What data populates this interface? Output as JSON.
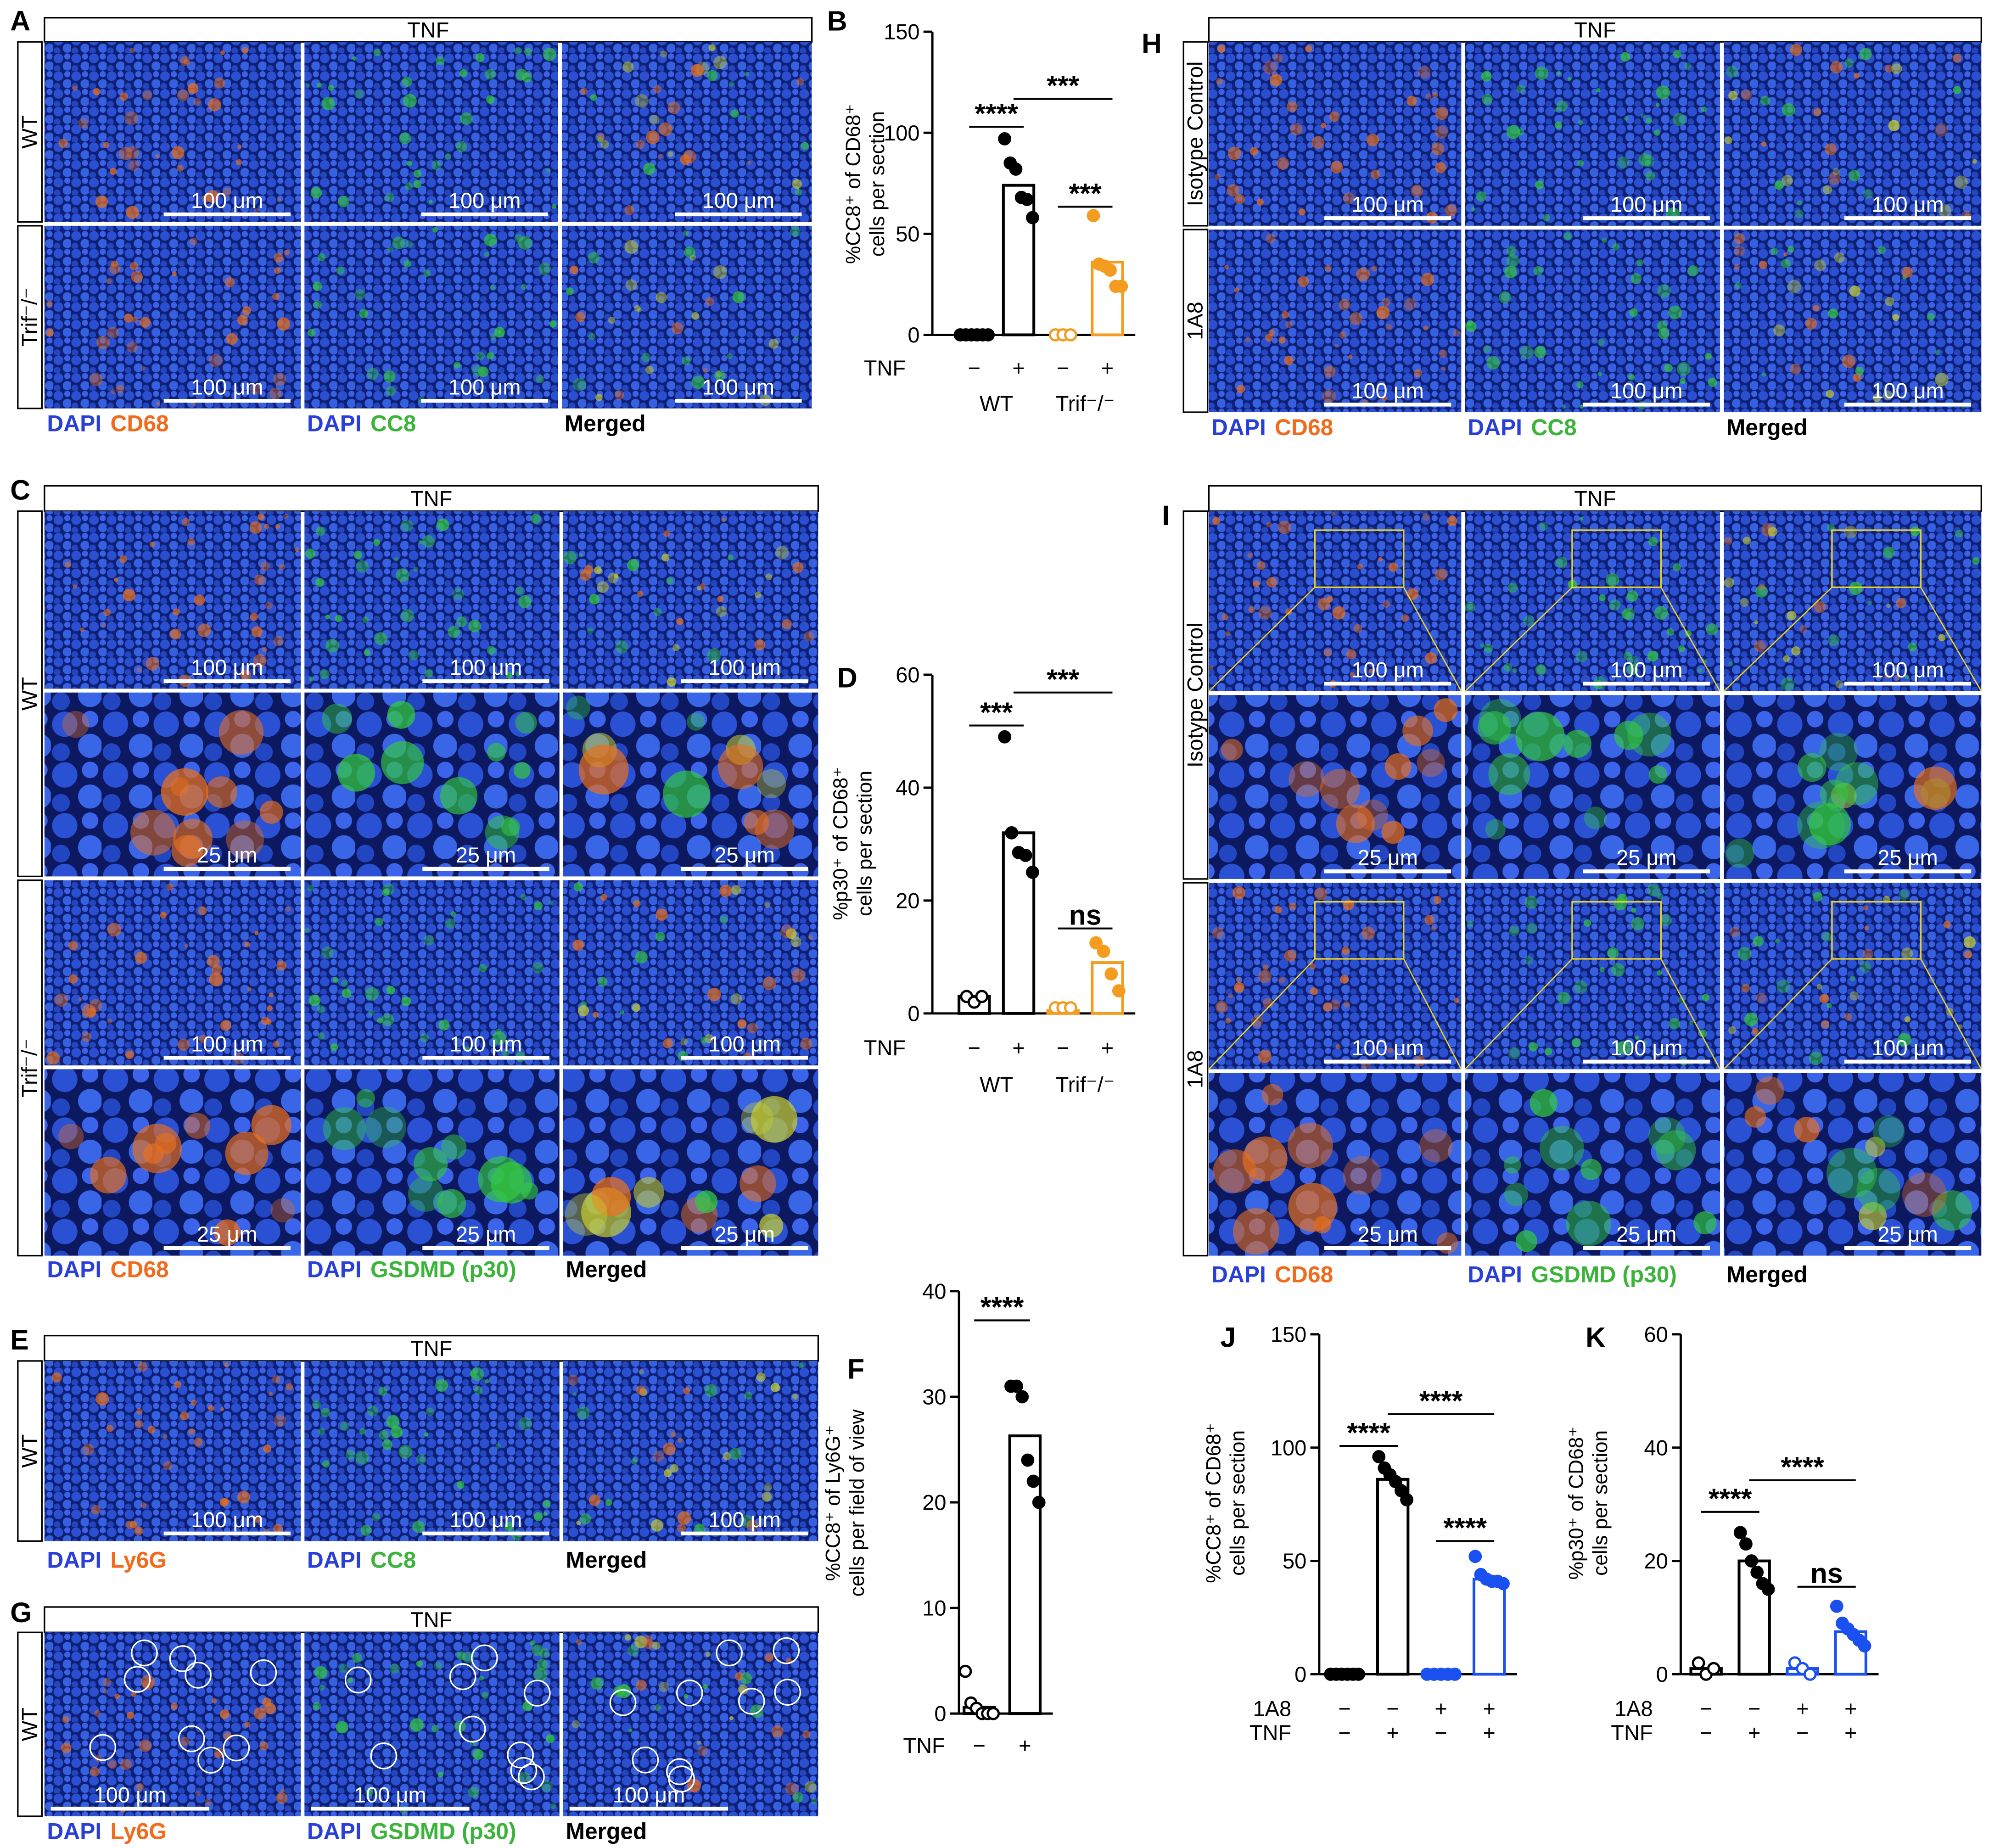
{
  "panels": [
    {
      "letter": "A",
      "header": "TNF",
      "groups": [
        {
          "label": "WT",
          "scales": [
            "100 μm"
          ]
        },
        {
          "label": "Trif⁻/⁻",
          "scales": [
            "100 μm"
          ]
        }
      ],
      "channels": [
        [
          {
            "text": "DAPI",
            "color": "#2a3fd9"
          },
          {
            "text": "CD68",
            "color": "#f26b1d"
          }
        ],
        [
          {
            "text": "DAPI",
            "color": "#2a3fd9"
          },
          {
            "text": "CC8",
            "color": "#3cb43c"
          }
        ],
        [
          {
            "text": "Merged",
            "color": "#000000"
          }
        ]
      ]
    },
    {
      "letter": "H",
      "header": "TNF",
      "groups": [
        {
          "label": "Isotype Control",
          "scales": [
            "100 μm"
          ]
        },
        {
          "label": "1A8",
          "scales": [
            "100 μm"
          ]
        }
      ],
      "channels": [
        [
          {
            "text": "DAPI",
            "color": "#2a3fd9"
          },
          {
            "text": "CD68",
            "color": "#f26b1d"
          }
        ],
        [
          {
            "text": "DAPI",
            "color": "#2a3fd9"
          },
          {
            "text": "CC8",
            "color": "#3cb43c"
          }
        ],
        [
          {
            "text": "Merged",
            "color": "#000000"
          }
        ]
      ]
    },
    {
      "letter": "C",
      "header": "TNF",
      "groups": [
        {
          "label": "WT",
          "scales": [
            "100 μm",
            "25 μm"
          ]
        },
        {
          "label": "Trif⁻/⁻",
          "scales": [
            "100 μm",
            "25 μm"
          ]
        }
      ],
      "channels": [
        [
          {
            "text": "DAPI",
            "color": "#2a3fd9"
          },
          {
            "text": "CD68",
            "color": "#f26b1d"
          }
        ],
        [
          {
            "text": "DAPI",
            "color": "#2a3fd9"
          },
          {
            "text": "GSDMD (p30)",
            "color": "#3cb43c"
          }
        ],
        [
          {
            "text": "Merged",
            "color": "#000000"
          }
        ]
      ]
    },
    {
      "letter": "I",
      "header": "TNF",
      "groups": [
        {
          "label": "Isotype Control",
          "scales": [
            "100 μm",
            "25 μm"
          ]
        },
        {
          "label": "1A8",
          "scales": [
            "100 μm",
            "25 μm"
          ]
        }
      ],
      "channels": [
        [
          {
            "text": "DAPI",
            "color": "#2a3fd9"
          },
          {
            "text": "CD68",
            "color": "#f26b1d"
          }
        ],
        [
          {
            "text": "DAPI",
            "color": "#2a3fd9"
          },
          {
            "text": "GSDMD (p30)",
            "color": "#3cb43c"
          }
        ],
        [
          {
            "text": "Merged",
            "color": "#000000"
          }
        ]
      ]
    },
    {
      "letter": "E",
      "header": "TNF",
      "groups": [
        {
          "label": "WT",
          "scales": [
            "100 μm"
          ]
        }
      ],
      "channels": [
        [
          {
            "text": "DAPI",
            "color": "#2a3fd9"
          },
          {
            "text": "Ly6G",
            "color": "#f26b1d"
          }
        ],
        [
          {
            "text": "DAPI",
            "color": "#2a3fd9"
          },
          {
            "text": "CC8",
            "color": "#3cb43c"
          }
        ],
        [
          {
            "text": "Merged",
            "color": "#000000"
          }
        ]
      ]
    },
    {
      "letter": "G",
      "header": "TNF",
      "groups": [
        {
          "label": "WT",
          "scales": [
            "100 μm"
          ]
        }
      ],
      "channels": [
        [
          {
            "text": "DAPI",
            "color": "#2a3fd9"
          },
          {
            "text": "Ly6G",
            "color": "#f26b1d"
          }
        ],
        [
          {
            "text": "DAPI",
            "color": "#2a3fd9"
          },
          {
            "text": "GSDMD (p30)",
            "color": "#3cb43c"
          }
        ],
        [
          {
            "text": "Merged",
            "color": "#000000"
          }
        ]
      ]
    }
  ],
  "chart_data": [
    {
      "type": "bar",
      "panel": "B",
      "ylabel": [
        "%CC8⁺ of CD68⁺",
        "cells per section"
      ],
      "ylim": [
        0,
        150
      ],
      "yticks": [
        0,
        50,
        100,
        150
      ],
      "bars": [
        {
          "value": 0,
          "color": "#000000",
          "filled": true,
          "points": [
            0,
            0,
            0,
            0,
            0,
            0
          ]
        },
        {
          "value": 74,
          "color": "#000000",
          "filled": true,
          "points": [
            97,
            85,
            82,
            68,
            67,
            58
          ]
        },
        {
          "value": 0,
          "color": "#f39c1f",
          "filled": false,
          "points": [
            0,
            0,
            0
          ]
        },
        {
          "value": 36,
          "color": "#f39c1f",
          "filled": true,
          "points": [
            59,
            35,
            34,
            32,
            24,
            24
          ]
        }
      ],
      "x_rows": [
        {
          "label": "TNF",
          "values": [
            "−",
            "+",
            "−",
            "+"
          ]
        }
      ],
      "groups": [
        "WT",
        "Trif⁻/⁻"
      ],
      "significance": [
        {
          "between": [
            0,
            1
          ],
          "label": "****"
        },
        {
          "between": [
            1,
            3
          ],
          "label": "***"
        },
        {
          "between": [
            2,
            3
          ],
          "label": "***"
        }
      ]
    },
    {
      "type": "bar",
      "panel": "D",
      "ylabel": [
        "%p30⁺ of CD68⁺",
        "cells per section"
      ],
      "ylim": [
        0,
        60
      ],
      "yticks": [
        0,
        20,
        40,
        60
      ],
      "bars": [
        {
          "value": 3,
          "color": "#000000",
          "filled": false,
          "points": [
            3,
            2,
            3
          ]
        },
        {
          "value": 32,
          "color": "#000000",
          "filled": true,
          "points": [
            49,
            32,
            28.5,
            28,
            25
          ]
        },
        {
          "value": 0.5,
          "color": "#f39c1f",
          "filled": false,
          "points": [
            1,
            1,
            1
          ]
        },
        {
          "value": 9,
          "color": "#f39c1f",
          "filled": true,
          "points": [
            12.5,
            11,
            7,
            4
          ]
        }
      ],
      "x_rows": [
        {
          "label": "TNF",
          "values": [
            "−",
            "+",
            "−",
            "+"
          ]
        }
      ],
      "groups": [
        "WT",
        "Trif⁻/⁻"
      ],
      "significance": [
        {
          "between": [
            0,
            1
          ],
          "label": "***"
        },
        {
          "between": [
            1,
            3
          ],
          "label": "***"
        },
        {
          "between": [
            2,
            3
          ],
          "label": "ns"
        }
      ]
    },
    {
      "type": "bar",
      "panel": "F",
      "ylabel": [
        "%CC8⁺ of Ly6G⁺",
        "cells per field of view"
      ],
      "ylim": [
        0,
        40
      ],
      "yticks": [
        0,
        10,
        20,
        30,
        40
      ],
      "bars": [
        {
          "value": 0.6,
          "color": "#000000",
          "filled": false,
          "points": [
            4,
            1,
            0.5,
            0,
            0,
            0
          ]
        },
        {
          "value": 26.3,
          "color": "#000000",
          "filled": true,
          "points": [
            31,
            31,
            30,
            24,
            22,
            20
          ]
        }
      ],
      "x_rows": [
        {
          "label": "TNF",
          "values": [
            "−",
            "+"
          ]
        }
      ],
      "significance": [
        {
          "between": [
            0,
            1
          ],
          "label": "****"
        }
      ]
    },
    {
      "type": "bar",
      "panel": "J",
      "ylabel": [
        "%CC8⁺ of CD68⁺",
        "cells per section"
      ],
      "ylim": [
        0,
        150
      ],
      "yticks": [
        0,
        50,
        100,
        150
      ],
      "bars": [
        {
          "value": 0,
          "color": "#000000",
          "filled": true,
          "points": [
            0,
            0,
            0,
            0,
            0,
            0
          ]
        },
        {
          "value": 86,
          "color": "#000000",
          "filled": true,
          "points": [
            96,
            91,
            88,
            85,
            81,
            77
          ]
        },
        {
          "value": 0,
          "color": "#1a4ff0",
          "filled": true,
          "points": [
            0,
            0,
            0,
            0,
            0
          ]
        },
        {
          "value": 42,
          "color": "#1a4ff0",
          "filled": true,
          "points": [
            52,
            44,
            42,
            41,
            41,
            40
          ]
        }
      ],
      "x_rows": [
        {
          "label": "1A8",
          "values": [
            "−",
            "−",
            "+",
            "+"
          ]
        },
        {
          "label": "TNF",
          "values": [
            "−",
            "+",
            "−",
            "+"
          ]
        }
      ],
      "significance": [
        {
          "between": [
            0,
            1
          ],
          "label": "****"
        },
        {
          "between": [
            1,
            3
          ],
          "label": "****"
        },
        {
          "between": [
            2,
            3
          ],
          "label": "****"
        }
      ]
    },
    {
      "type": "bar",
      "panel": "K",
      "ylabel": [
        "%p30⁺ of CD68⁺",
        "cells per section"
      ],
      "ylim": [
        0,
        60
      ],
      "yticks": [
        0,
        20,
        40,
        60
      ],
      "bars": [
        {
          "value": 1,
          "color": "#000000",
          "filled": false,
          "points": [
            2,
            0,
            1
          ]
        },
        {
          "value": 20,
          "color": "#000000",
          "filled": true,
          "points": [
            25,
            23,
            20,
            18,
            16,
            15
          ]
        },
        {
          "value": 1,
          "color": "#1a4ff0",
          "filled": false,
          "points": [
            2,
            1,
            0
          ]
        },
        {
          "value": 7.5,
          "color": "#1a4ff0",
          "filled": true,
          "points": [
            12,
            9,
            8,
            7,
            6,
            5
          ]
        }
      ],
      "x_rows": [
        {
          "label": "1A8",
          "values": [
            "−",
            "−",
            "+",
            "+"
          ]
        },
        {
          "label": "TNF",
          "values": [
            "−",
            "+",
            "−",
            "+"
          ]
        }
      ],
      "significance": [
        {
          "between": [
            0,
            1
          ],
          "label": "****"
        },
        {
          "between": [
            1,
            3
          ],
          "label": "****"
        },
        {
          "between": [
            2,
            3
          ],
          "label": "ns"
        }
      ]
    }
  ]
}
